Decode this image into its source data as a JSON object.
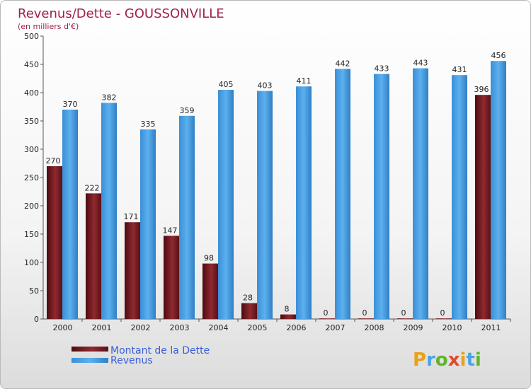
{
  "chart_data": {
    "type": "bar",
    "title": "Revenus/Dette - GOUSSONVILLE",
    "subtitle": "(en milliers d'€)",
    "categories": [
      "2000",
      "2001",
      "2002",
      "2003",
      "2004",
      "2005",
      "2006",
      "2007",
      "2008",
      "2009",
      "2010",
      "2011"
    ],
    "series": [
      {
        "name": "Montant de la Dette",
        "color": "#7a1c22",
        "values": [
          270,
          222,
          171,
          147,
          98,
          28,
          8,
          0,
          0,
          0,
          0,
          396
        ]
      },
      {
        "name": "Revenus",
        "color": "#4aa3e6",
        "values": [
          370,
          382,
          335,
          359,
          405,
          403,
          411,
          442,
          433,
          443,
          431,
          456
        ]
      }
    ],
    "ylim": [
      0,
      500
    ],
    "yticks": [
      0,
      50,
      100,
      150,
      200,
      250,
      300,
      350,
      400,
      450,
      500
    ],
    "grid": false,
    "legend": "bottom-left"
  },
  "branding": {
    "logo_letters": [
      "P",
      "r",
      "o",
      "x",
      "i",
      "t",
      "i"
    ],
    "logo_colors": [
      "#e8a21a",
      "#4aa3e6",
      "#5fb52a",
      "#e04a2a",
      "#e8a21a",
      "#4aa3e6",
      "#5fb52a"
    ]
  }
}
